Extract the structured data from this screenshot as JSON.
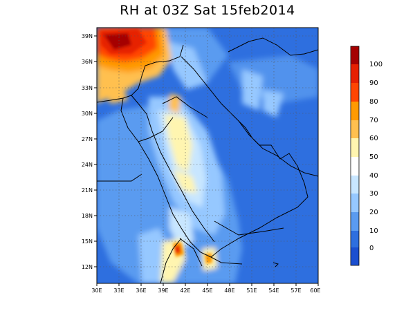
{
  "title": "RH at 03Z Sat 15feb2014",
  "map": {
    "lon_ticks": [
      "30E",
      "33E",
      "36E",
      "39E",
      "42E",
      "45E",
      "48E",
      "51E",
      "54E",
      "57E",
      "60E"
    ],
    "lat_ticks": [
      "39N",
      "36N",
      "33N",
      "30N",
      "27N",
      "24N",
      "21N",
      "18N",
      "15N",
      "12N"
    ],
    "lon_range": [
      30,
      60
    ],
    "lat_range": [
      9.5,
      40.5
    ],
    "gridlines": "dotted"
  },
  "colorbar": {
    "labels": [
      "100",
      "90",
      "80",
      "70",
      "60",
      "50",
      "40",
      "30",
      "20",
      "10",
      "0"
    ],
    "colors": [
      "#a50000",
      "#e62000",
      "#ff4500",
      "#ff9a00",
      "#ffc050",
      "#fff5b0",
      "#ffffff",
      "#c8e6ff",
      "#96c8ff",
      "#5a9bf0",
      "#2e6fdf",
      "#1b4fd0"
    ]
  },
  "chart_data": {
    "type": "heatmap",
    "title": "RH at 03Z Sat 15feb2014",
    "variable": "RH",
    "x_range": [
      30,
      60
    ],
    "y_range": [
      9.5,
      40.5
    ],
    "x_ticks": [
      "30E",
      "33E",
      "36E",
      "39E",
      "42E",
      "45E",
      "48E",
      "51E",
      "54E",
      "57E",
      "60E"
    ],
    "y_ticks": [
      "39N",
      "36N",
      "33N",
      "30N",
      "27N",
      "24N",
      "21N",
      "18N",
      "15N",
      "12N"
    ],
    "color_levels": [
      0,
      10,
      20,
      30,
      40,
      50,
      60,
      70,
      80,
      90,
      100
    ]
  }
}
